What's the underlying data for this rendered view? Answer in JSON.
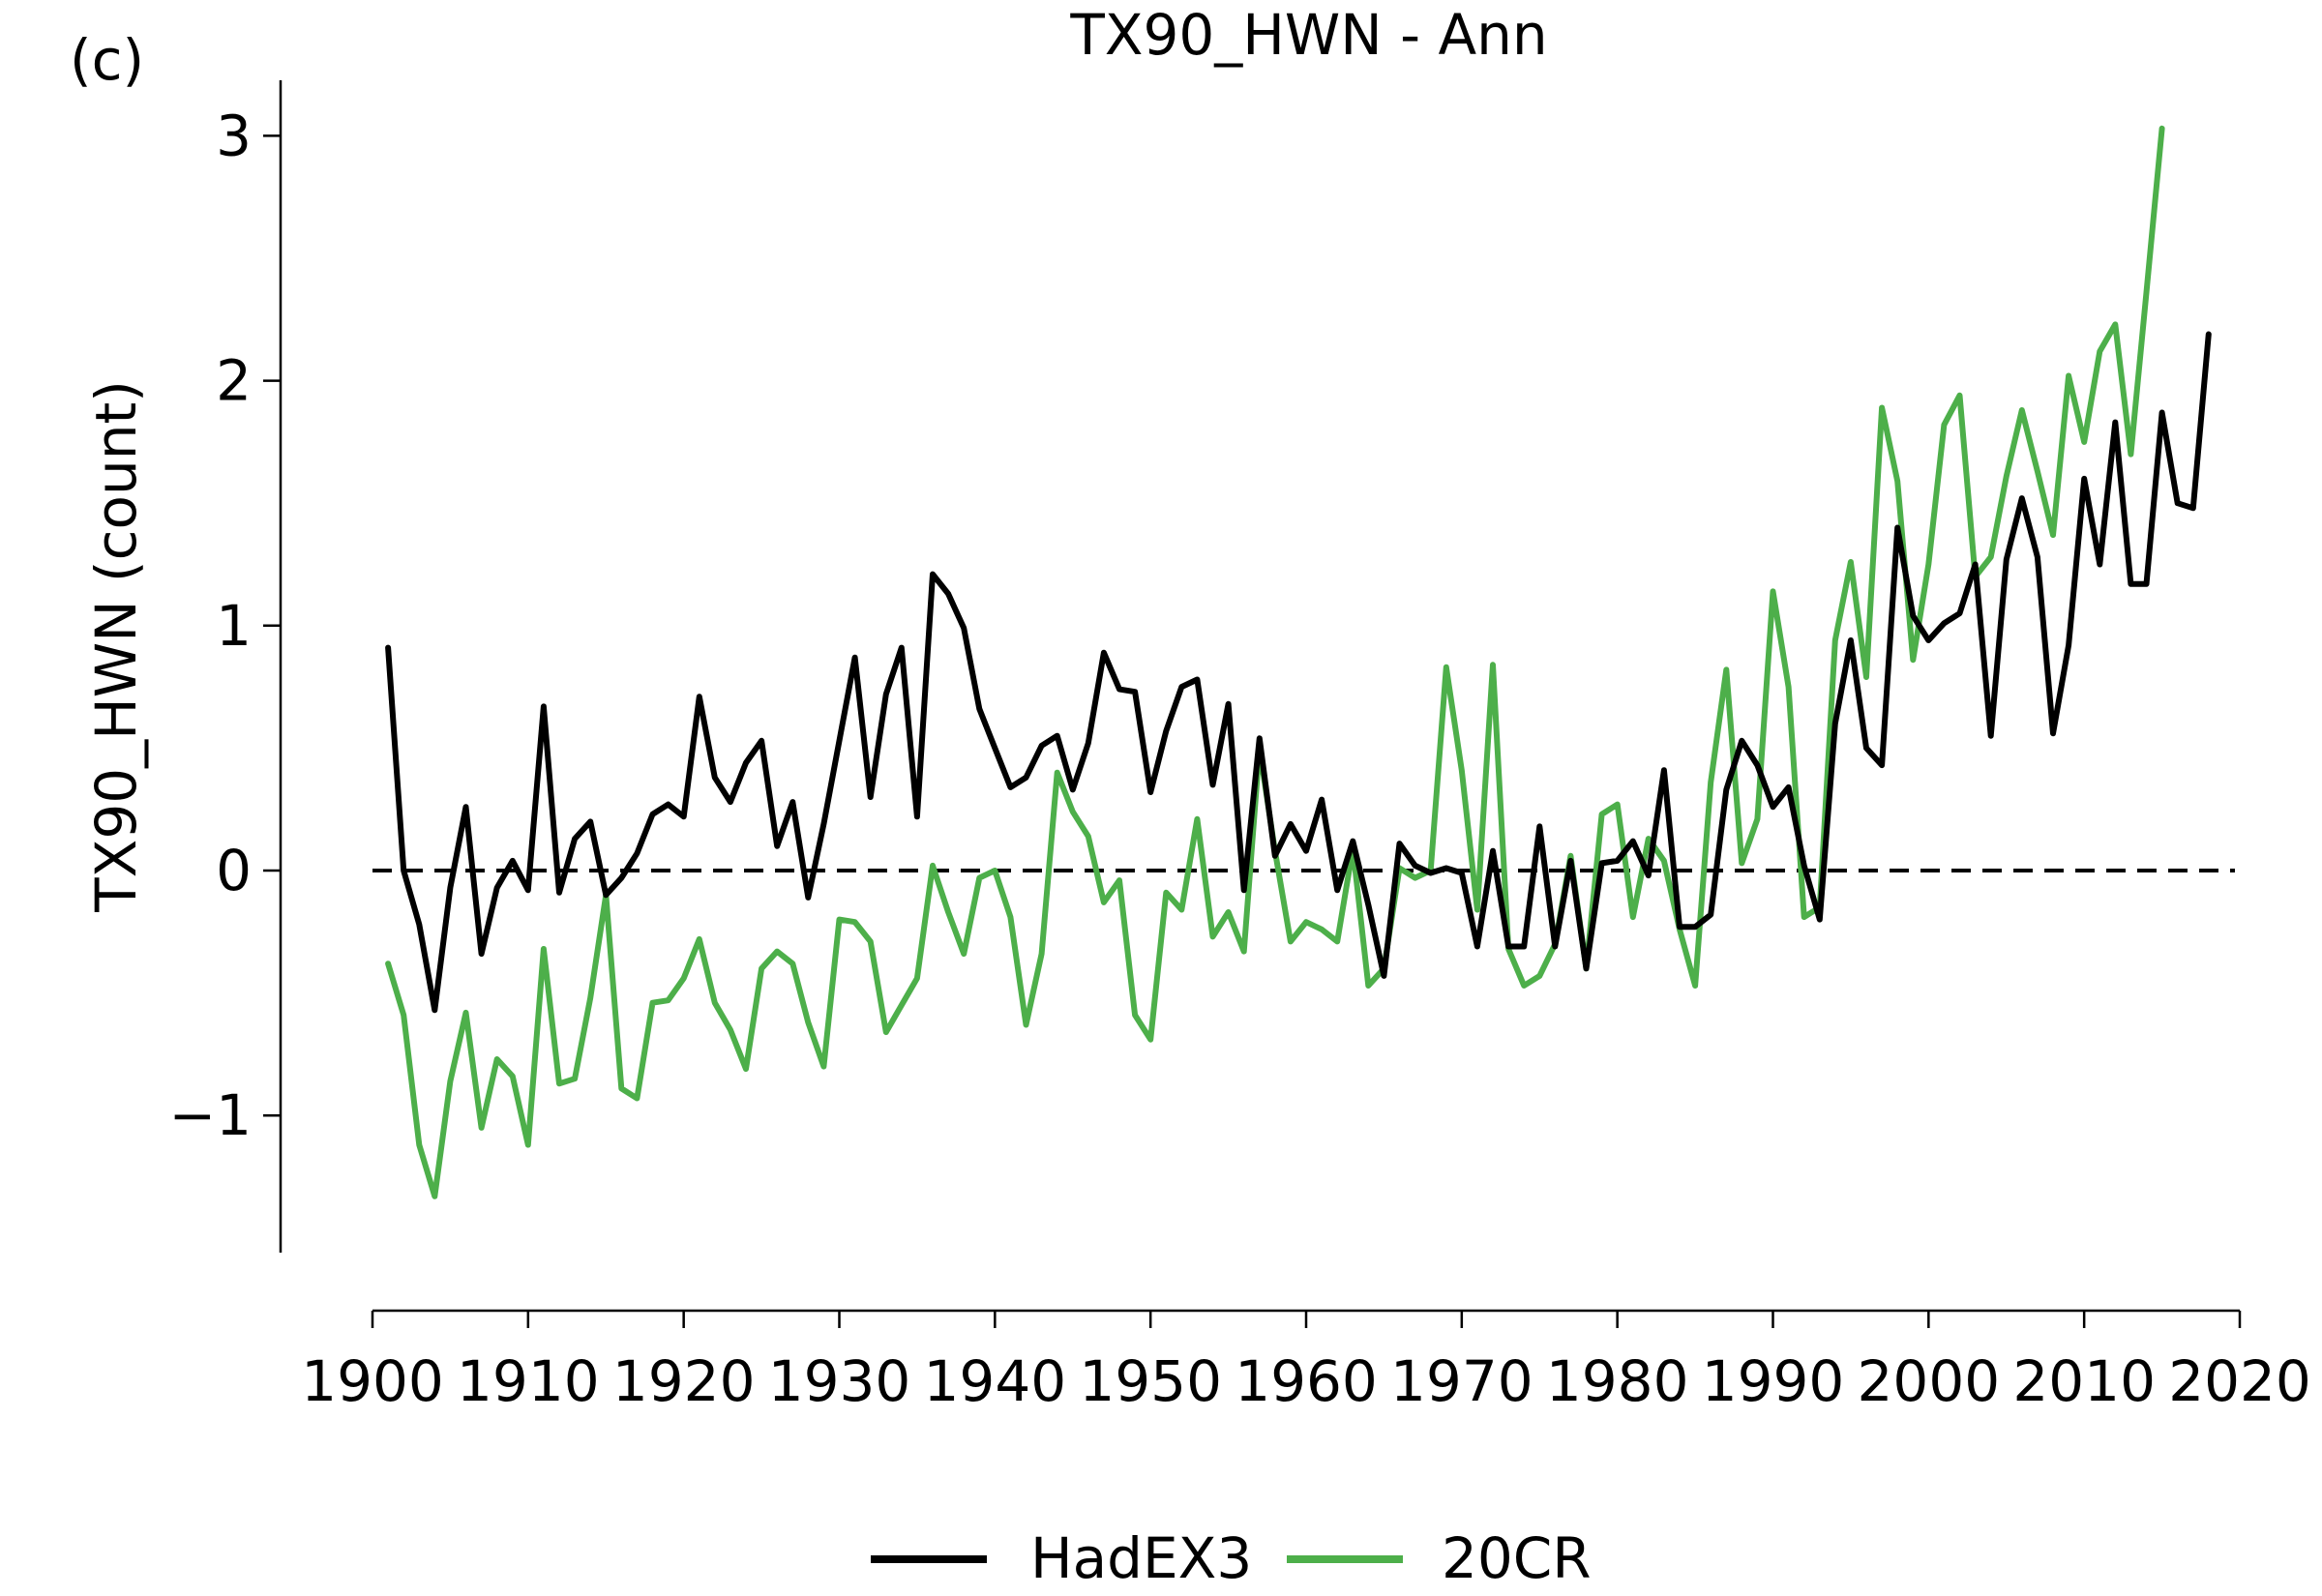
{
  "chart_data": {
    "type": "line",
    "panel_label": "(c)",
    "title": "TX90_HWN - Ann",
    "xlabel": "",
    "ylabel": "TX90_HWN (count)",
    "xlim": [
      1900,
      2020
    ],
    "ylim": [
      -1.55,
      3.25
    ],
    "x_ticks": [
      1900,
      1910,
      1920,
      1930,
      1940,
      1950,
      1960,
      1970,
      1980,
      1990,
      2000,
      2010,
      2020
    ],
    "y_ticks": [
      -1,
      0,
      1,
      2,
      3
    ],
    "y_tick_labels": [
      "−1",
      "0",
      "1",
      "2",
      "3"
    ],
    "reference_line": {
      "y": 0,
      "style": "dashed",
      "color": "#000000"
    },
    "grid": false,
    "legend_position": "bottom-center",
    "series": [
      {
        "name": "HadEX3",
        "color": "#000000",
        "x": [
          1901,
          1902,
          1903,
          1904,
          1905,
          1906,
          1907,
          1908,
          1909,
          1910,
          1911,
          1912,
          1913,
          1914,
          1915,
          1916,
          1917,
          1918,
          1919,
          1920,
          1921,
          1922,
          1923,
          1924,
          1925,
          1926,
          1927,
          1928,
          1929,
          1930,
          1931,
          1932,
          1933,
          1934,
          1935,
          1936,
          1937,
          1938,
          1939,
          1940,
          1941,
          1942,
          1943,
          1944,
          1945,
          1946,
          1947,
          1948,
          1949,
          1950,
          1951,
          1952,
          1953,
          1954,
          1955,
          1956,
          1957,
          1958,
          1959,
          1960,
          1961,
          1962,
          1963,
          1964,
          1965,
          1966,
          1967,
          1968,
          1969,
          1970,
          1971,
          1972,
          1973,
          1974,
          1975,
          1976,
          1977,
          1978,
          1979,
          1980,
          1981,
          1982,
          1983,
          1984,
          1985,
          1986,
          1987,
          1988,
          1989,
          1990,
          1991,
          1992,
          1993,
          1994,
          1995,
          1996,
          1997,
          1998,
          1999,
          2000,
          2001,
          2002,
          2003,
          2004,
          2005,
          2006,
          2007,
          2008,
          2009,
          2010,
          2011,
          2012,
          2013,
          2014,
          2015,
          2016,
          2017,
          2018
        ],
        "values": [
          0.91,
          0.0,
          -0.22,
          -0.57,
          -0.07,
          0.26,
          -0.34,
          -0.07,
          0.04,
          -0.08,
          0.67,
          -0.09,
          0.13,
          0.2,
          -0.1,
          -0.03,
          0.07,
          0.23,
          0.27,
          0.22,
          0.71,
          0.38,
          0.28,
          0.44,
          0.53,
          0.1,
          0.28,
          -0.11,
          0.19,
          0.53,
          0.87,
          0.3,
          0.72,
          0.91,
          0.22,
          1.21,
          1.13,
          0.99,
          0.66,
          0.5,
          0.34,
          0.38,
          0.51,
          0.55,
          0.33,
          0.52,
          0.89,
          0.74,
          0.73,
          0.32,
          0.57,
          0.75,
          0.78,
          0.35,
          0.68,
          -0.08,
          0.54,
          0.06,
          0.19,
          0.08,
          0.29,
          -0.08,
          0.12,
          -0.14,
          -0.43,
          0.11,
          0.02,
          -0.01,
          0.01,
          -0.01,
          -0.31,
          0.08,
          -0.31,
          -0.31,
          0.18,
          -0.31,
          0.04,
          -0.4,
          0.03,
          0.04,
          0.12,
          -0.02,
          0.41,
          -0.23,
          -0.23,
          -0.18,
          0.33,
          0.53,
          0.43,
          0.26,
          0.34,
          0.02,
          -0.2,
          0.6,
          0.94,
          0.5,
          0.43,
          1.4,
          1.04,
          0.94,
          1.01,
          1.05,
          1.25,
          0.55,
          1.27,
          1.52,
          1.28,
          0.56,
          0.92,
          1.6,
          1.25,
          1.83,
          1.17,
          1.17,
          1.87,
          1.5,
          1.48,
          2.19
        ]
      },
      {
        "name": "20CR",
        "color": "#4daf4a",
        "x": [
          1901,
          1902,
          1903,
          1904,
          1905,
          1906,
          1907,
          1908,
          1909,
          1910,
          1911,
          1912,
          1913,
          1914,
          1915,
          1916,
          1917,
          1918,
          1919,
          1920,
          1921,
          1922,
          1923,
          1924,
          1925,
          1926,
          1927,
          1928,
          1929,
          1930,
          1931,
          1932,
          1933,
          1934,
          1935,
          1936,
          1937,
          1938,
          1939,
          1940,
          1941,
          1942,
          1943,
          1944,
          1945,
          1946,
          1947,
          1948,
          1949,
          1950,
          1951,
          1952,
          1953,
          1954,
          1955,
          1956,
          1957,
          1958,
          1959,
          1960,
          1961,
          1962,
          1963,
          1964,
          1965,
          1966,
          1967,
          1968,
          1969,
          1970,
          1971,
          1972,
          1973,
          1974,
          1975,
          1976,
          1977,
          1978,
          1979,
          1980,
          1981,
          1982,
          1983,
          1984,
          1985,
          1986,
          1987,
          1988,
          1989,
          1990,
          1991,
          1992,
          1993,
          1994,
          1995,
          1996,
          1997,
          1998,
          1999,
          2000,
          2001,
          2002,
          2003,
          2004,
          2005,
          2006,
          2007,
          2008,
          2009,
          2010,
          2011,
          2012,
          2013,
          2014,
          2015
        ],
        "values": [
          -0.38,
          -0.59,
          -1.12,
          -1.33,
          -0.86,
          -0.58,
          -1.05,
          -0.77,
          -0.84,
          -1.12,
          -0.32,
          -0.87,
          -0.85,
          -0.52,
          -0.1,
          -0.89,
          -0.93,
          -0.54,
          -0.53,
          -0.44,
          -0.28,
          -0.54,
          -0.65,
          -0.81,
          -0.4,
          -0.33,
          -0.38,
          -0.62,
          -0.8,
          -0.2,
          -0.21,
          -0.29,
          -0.66,
          -0.55,
          -0.44,
          0.02,
          -0.17,
          -0.34,
          -0.03,
          0.0,
          -0.19,
          -0.63,
          -0.34,
          0.4,
          0.24,
          0.14,
          -0.13,
          -0.04,
          -0.59,
          -0.69,
          -0.09,
          -0.16,
          0.21,
          -0.27,
          -0.17,
          -0.33,
          0.5,
          0.08,
          -0.29,
          -0.21,
          -0.24,
          -0.29,
          0.09,
          -0.47,
          -0.4,
          0.01,
          -0.03,
          0.0,
          0.83,
          0.41,
          -0.16,
          0.84,
          -0.32,
          -0.47,
          -0.43,
          -0.3,
          0.06,
          -0.4,
          0.23,
          0.27,
          -0.19,
          0.13,
          0.04,
          -0.24,
          -0.47,
          0.36,
          0.82,
          0.03,
          0.21,
          1.14,
          0.75,
          -0.19,
          -0.15,
          0.94,
          1.26,
          0.79,
          1.89,
          1.59,
          0.86,
          1.25,
          1.82,
          1.94,
          1.2,
          1.28,
          1.61,
          1.88,
          1.63,
          1.37,
          2.02,
          1.75,
          2.12,
          2.23,
          1.7,
          2.36,
          3.03
        ]
      }
    ]
  }
}
